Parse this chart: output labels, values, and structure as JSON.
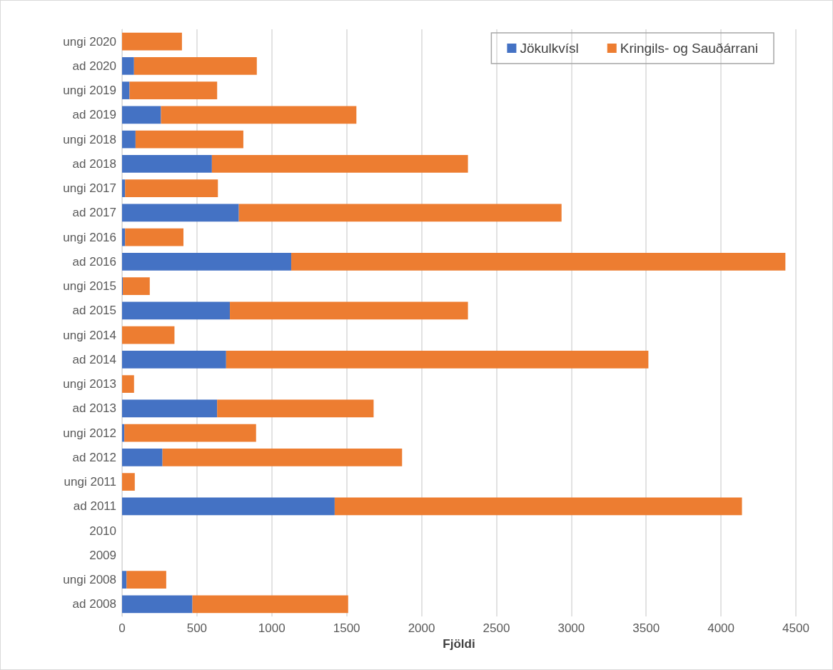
{
  "chart_data": {
    "type": "bar",
    "orientation": "horizontal",
    "stacked": true,
    "xlabel": "Fjöldi",
    "categories": [
      "ungi 2020",
      "ad 2020",
      "ungi 2019",
      "ad 2019",
      "ungi 2018",
      "ad 2018",
      "ungi 2017",
      "ad 2017",
      "ungi 2016",
      "ad 2016",
      "ungi 2015",
      "ad 2015",
      "ungi 2014",
      "ad 2014",
      "ungi 2013",
      "ad 2013",
      "ungi 2012",
      "ad 2012",
      "ungi 2011",
      "ad 2011",
      "2010",
      "2009",
      "ungi 2008",
      "ad 2008"
    ],
    "series": [
      {
        "name": "Jökulkvísl",
        "color": "#4472c4",
        "values": [
          0,
          80,
          50,
          260,
          90,
          600,
          20,
          780,
          20,
          1130,
          5,
          720,
          0,
          695,
          0,
          635,
          15,
          270,
          0,
          1420,
          null,
          null,
          30,
          470
        ]
      },
      {
        "name": "Kringils- og Sauðárrani",
        "color": "#ed7d31",
        "values": [
          400,
          820,
          585,
          1305,
          720,
          1710,
          620,
          2155,
          390,
          3300,
          180,
          1590,
          350,
          2820,
          80,
          1045,
          880,
          1600,
          85,
          2720,
          null,
          null,
          265,
          1040
        ]
      }
    ],
    "xlim": [
      0,
      4500
    ],
    "xticks": [
      0,
      500,
      1000,
      1500,
      2000,
      2500,
      3000,
      3500,
      4000,
      4500
    ],
    "grid": "x",
    "legend": "top right"
  }
}
